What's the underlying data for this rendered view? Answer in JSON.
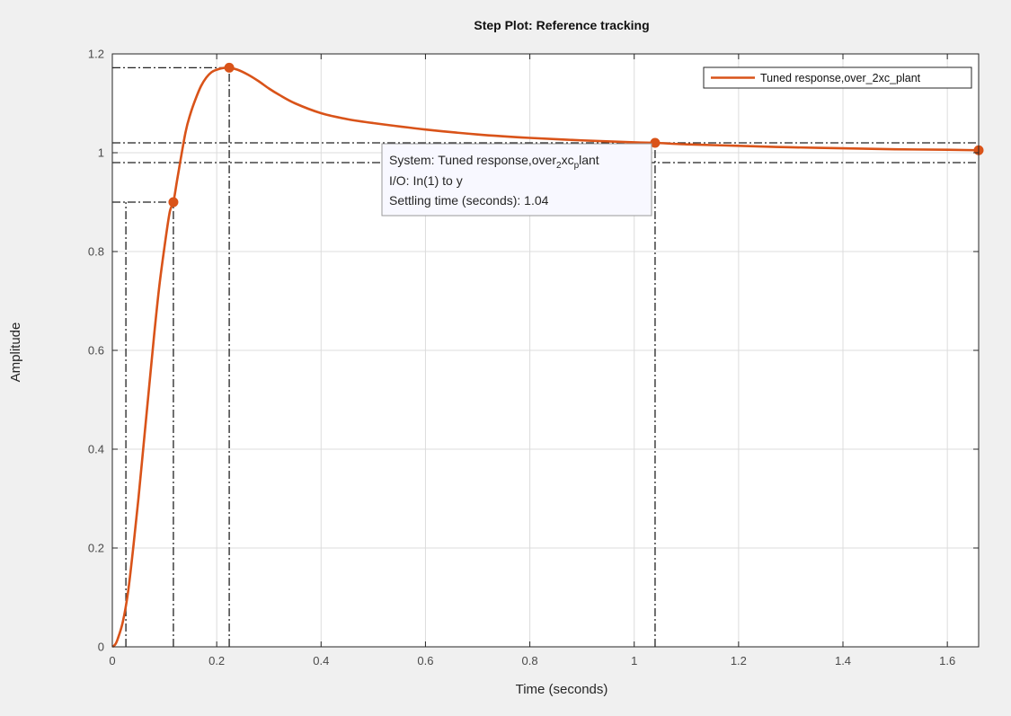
{
  "chart_data": {
    "type": "line",
    "title": "Step Plot: Reference tracking",
    "xlabel": "Time (seconds)",
    "ylabel": "Amplitude",
    "xlim": [
      0,
      1.66
    ],
    "ylim": [
      0,
      1.2
    ],
    "xticks": [
      0,
      0.2,
      0.4,
      0.6,
      0.8,
      1,
      1.2,
      1.4,
      1.6
    ],
    "xtick_labels": [
      "0",
      "0.2",
      "0.4",
      "0.6",
      "0.8",
      "1",
      "1.2",
      "1.4",
      "1.6"
    ],
    "yticks": [
      0,
      0.2,
      0.4,
      0.6,
      0.8,
      1,
      1.2
    ],
    "ytick_labels": [
      "0",
      "0.2",
      "0.4",
      "0.6",
      "0.8",
      "1",
      "1.2"
    ],
    "grid": true,
    "legend_position": "top-right",
    "series": [
      {
        "name": "Tuned response,over_2xc_plant",
        "color": "#d95319",
        "x": [
          0,
          0.005,
          0.01,
          0.02,
          0.03,
          0.04,
          0.05,
          0.06,
          0.07,
          0.08,
          0.09,
          0.1,
          0.11,
          0.117,
          0.125,
          0.14,
          0.15,
          0.16,
          0.17,
          0.18,
          0.19,
          0.2,
          0.21,
          0.224,
          0.24,
          0.26,
          0.28,
          0.3,
          0.32,
          0.35,
          0.4,
          0.45,
          0.5,
          0.6,
          0.7,
          0.8,
          0.9,
          1.0,
          1.04,
          1.1,
          1.2,
          1.3,
          1.4,
          1.5,
          1.6,
          1.66
        ],
        "y": [
          0,
          0.004,
          0.015,
          0.05,
          0.11,
          0.2,
          0.3,
          0.41,
          0.52,
          0.63,
          0.73,
          0.81,
          0.88,
          0.9,
          0.95,
          1.04,
          1.08,
          1.11,
          1.135,
          1.152,
          1.163,
          1.168,
          1.171,
          1.172,
          1.168,
          1.158,
          1.145,
          1.13,
          1.117,
          1.1,
          1.08,
          1.068,
          1.06,
          1.047,
          1.037,
          1.03,
          1.025,
          1.021,
          1.02,
          1.017,
          1.014,
          1.011,
          1.009,
          1.007,
          1.006,
          1.005
        ]
      }
    ],
    "markers": [
      {
        "name": "rise-time-marker",
        "x": 0.117,
        "y": 0.9
      },
      {
        "name": "peak-response-marker",
        "x": 0.224,
        "y": 1.172
      },
      {
        "name": "settling-time-marker",
        "x": 1.04,
        "y": 1.02
      },
      {
        "name": "steady-state-marker",
        "x": 1.66,
        "y": 1.005
      }
    ],
    "reference_lines": {
      "horizontal": [
        {
          "y": 1.172,
          "x0": 0,
          "x1": 0.224
        },
        {
          "y": 0.9,
          "x0": 0,
          "x1": 0.117
        },
        {
          "y": 1.02,
          "x0": 0,
          "x1": 1.66
        },
        {
          "y": 0.98,
          "x0": 0,
          "x1": 1.66
        }
      ],
      "vertical": [
        {
          "x": 0.026,
          "y0": 0,
          "y1": 0.9
        },
        {
          "x": 0.117,
          "y0": 0,
          "y1": 0.9
        },
        {
          "x": 0.224,
          "y0": 0,
          "y1": 1.172
        },
        {
          "x": 1.04,
          "y0": 0,
          "y1": 1.02
        }
      ]
    },
    "datatip": {
      "line1_prefix": "System:  Tuned  response,over",
      "line1_sub1": "2",
      "line1_mid": "xc",
      "line1_sub2": "p",
      "line1_suffix": "lant",
      "line2": "I/O:  In(1)  to  y",
      "line3": "Settling time (seconds):  1.04"
    }
  }
}
